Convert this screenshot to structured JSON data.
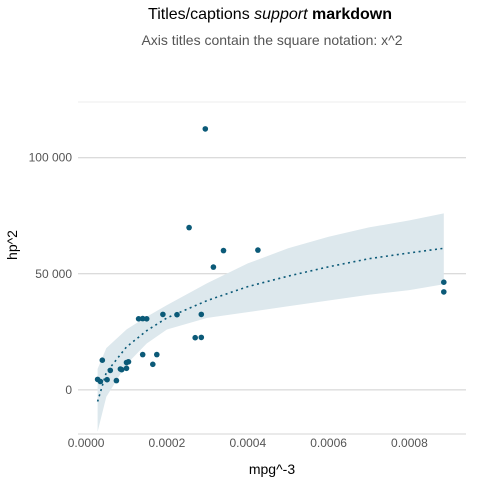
{
  "chart_data": {
    "type": "scatter",
    "title": {
      "plain": "Titles/captions ",
      "italic": "support",
      "bold": "markdown"
    },
    "subtitle": "Axis titles contain the square notation: x^2",
    "xlabel": "mpg^-3",
    "ylabel": "hp^2",
    "xlim": [
      -2e-05,
      0.00094
    ],
    "ylim": [
      -19000,
      124000
    ],
    "xticks": [
      0.0,
      0.0002,
      0.0004,
      0.0006,
      0.0008
    ],
    "xtick_labels": [
      "0.0000",
      "0.0002",
      "0.0004",
      "0.0006",
      "0.0008"
    ],
    "yticks": [
      0,
      50000,
      100000
    ],
    "ytick_labels": [
      "0",
      "50 000",
      "100 000"
    ],
    "grid": true,
    "point_color": "#0b5a78",
    "band_color": "#dde8ed",
    "trend_color": "#0b5a78",
    "points": [
      {
        "x": 2.85e-05,
        "y": 4500
      },
      {
        "x": 3.55e-05,
        "y": 3600
      },
      {
        "x": 4.01e-05,
        "y": 12800
      },
      {
        "x": 5.2e-05,
        "y": 4400
      },
      {
        "x": 6e-05,
        "y": 8400
      },
      {
        "x": 7.5e-05,
        "y": 4000
      },
      {
        "x": 8.5e-05,
        "y": 9000
      },
      {
        "x": 8.8e-05,
        "y": 8700
      },
      {
        "x": 0.0001,
        "y": 11800
      },
      {
        "x": 0.0001,
        "y": 9300
      },
      {
        "x": 0.000105,
        "y": 12100
      },
      {
        "x": 0.00013,
        "y": 30600
      },
      {
        "x": 0.00014,
        "y": 30700
      },
      {
        "x": 0.00014,
        "y": 15200
      },
      {
        "x": 0.00015,
        "y": 30600
      },
      {
        "x": 0.000165,
        "y": 11000
      },
      {
        "x": 0.000175,
        "y": 15200
      },
      {
        "x": 0.00019,
        "y": 32500
      },
      {
        "x": 0.000225,
        "y": 32400
      },
      {
        "x": 0.000255,
        "y": 69900
      },
      {
        "x": 0.00027,
        "y": 22500
      },
      {
        "x": 0.000285,
        "y": 22600
      },
      {
        "x": 0.000285,
        "y": 32500
      },
      {
        "x": 0.000295,
        "y": 112400
      },
      {
        "x": 0.000315,
        "y": 52900
      },
      {
        "x": 0.00034,
        "y": 60000
      },
      {
        "x": 0.000425,
        "y": 60200
      },
      {
        "x": 0.000885,
        "y": 46400
      },
      {
        "x": 0.000885,
        "y": 42200
      }
    ],
    "trend": {
      "x": [
        2.85e-05,
        5e-05,
        0.0001,
        0.00015,
        0.0002,
        0.0003,
        0.0004,
        0.0005,
        0.0006,
        0.0007,
        0.0008,
        0.000885
      ],
      "y": [
        -5000,
        7500,
        18500,
        25500,
        31000,
        38500,
        44500,
        49000,
        53000,
        56500,
        59000,
        61000
      ],
      "lower": [
        -18000,
        -3000,
        11000,
        20000,
        26000,
        31000,
        33500,
        36000,
        38500,
        41000,
        43000,
        45500
      ],
      "upper": [
        9000,
        18000,
        26000,
        31500,
        36500,
        46000,
        54500,
        61000,
        66000,
        70000,
        73000,
        76000
      ]
    }
  }
}
